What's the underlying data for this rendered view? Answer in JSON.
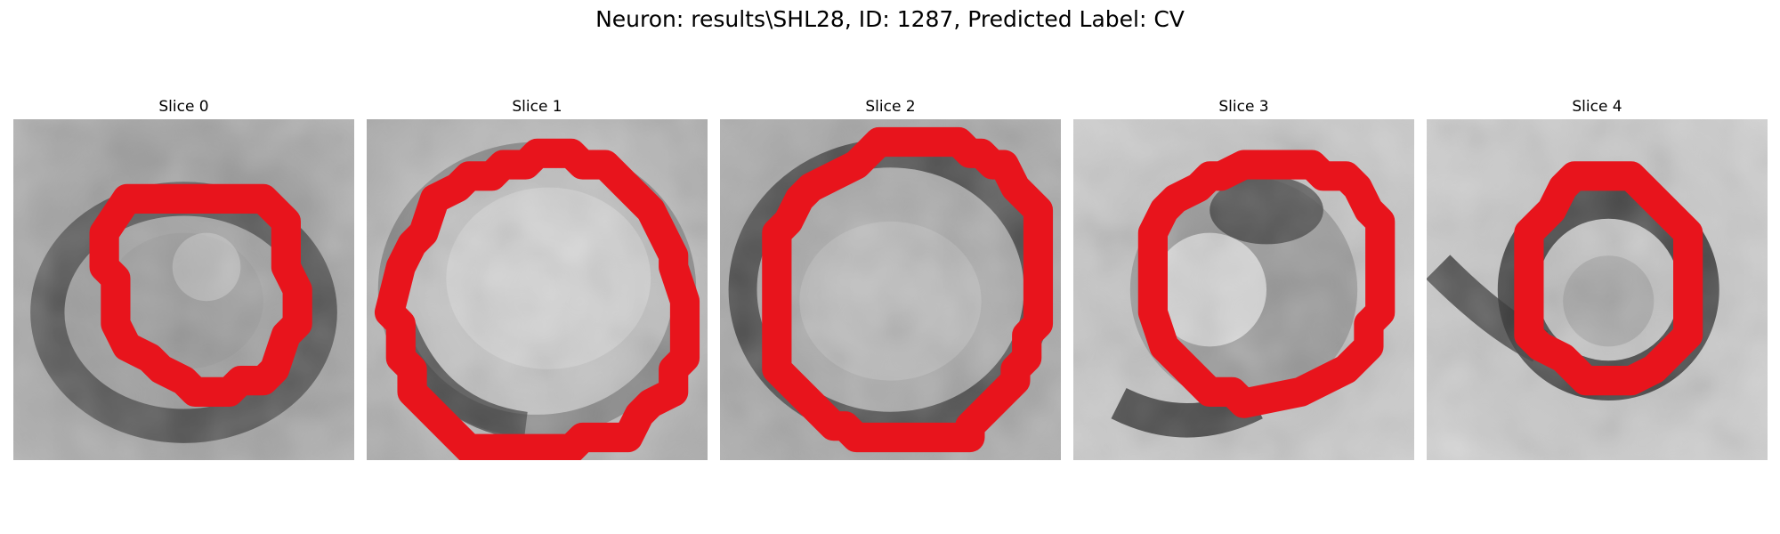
{
  "figure": {
    "title": "Neuron: results\\SHL28, ID: 1287, Predicted Label: CV",
    "overlay_color": "#e8141c",
    "colormap": "grayscale",
    "slices": [
      {
        "title": "Slice 0"
      },
      {
        "title": "Slice 1"
      },
      {
        "title": "Slice 2"
      },
      {
        "title": "Slice 3"
      },
      {
        "title": "Slice 4"
      }
    ]
  }
}
